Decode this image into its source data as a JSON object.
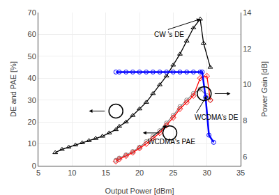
{
  "chart_data": {
    "type": "line",
    "xlabel": "Output Power [dBm]",
    "ylabel": "DE and PAE [%]",
    "y2label": "Power Gain [dB]",
    "xlim": [
      5,
      35
    ],
    "ylim": [
      0,
      70
    ],
    "y2lim": [
      5.5,
      14
    ],
    "xticks": [
      5,
      10,
      15,
      20,
      25,
      30,
      35
    ],
    "yticks": [
      0,
      10,
      20,
      30,
      40,
      50,
      60,
      70
    ],
    "y2ticks": [
      6,
      8,
      10,
      12,
      14
    ],
    "grid": true,
    "series": [
      {
        "x": [
          7.5,
          8.5,
          9.5,
          10.5,
          11.5,
          12.5,
          13.5,
          14.5,
          15.5,
          16.5,
          17,
          18,
          19,
          20,
          21,
          22,
          23,
          24,
          25,
          26,
          27,
          28,
          29,
          29.5,
          30.5
        ],
        "values": [
          6,
          7.5,
          8.5,
          9.5,
          10.5,
          11.5,
          12.5,
          13.5,
          15,
          16.5,
          18,
          20,
          23,
          26,
          29,
          33,
          37,
          41,
          46,
          51,
          57,
          63,
          67,
          56,
          45
        ],
        "color": "black",
        "marker": "triangle-up"
      },
      {
        "x": [
          16.5,
          17,
          18,
          19,
          20,
          21,
          22,
          23,
          24,
          25,
          26,
          27,
          28,
          29,
          29.3,
          29.8,
          30.3,
          31
        ],
        "values": [
          10.7,
          10.7,
          10.7,
          10.7,
          10.7,
          10.7,
          10.7,
          10.7,
          10.7,
          10.7,
          10.7,
          10.7,
          10.7,
          10.7,
          10.7,
          9.3,
          7.2,
          6.8
        ],
        "color": "blue",
        "marker": "circle",
        "axis": "y2"
      },
      {
        "x": [
          16.5,
          17,
          18,
          19,
          20,
          21,
          22,
          23,
          24,
          25,
          26,
          27,
          28,
          29,
          30,
          30.5
        ],
        "values": [
          2.5,
          3.5,
          5,
          6.5,
          8.5,
          11,
          13.5,
          16,
          19.5,
          23,
          27,
          30,
          33,
          35,
          32,
          30
        ],
        "color": "#888888",
        "marker": "circle"
      },
      {
        "x": [
          16.5,
          17,
          18,
          19,
          20,
          21,
          22,
          23,
          24,
          25,
          26,
          27,
          28,
          29,
          30,
          30.5
        ],
        "values": [
          2,
          3,
          4.5,
          6,
          8,
          10,
          12.5,
          15,
          18.5,
          22,
          26,
          29,
          32,
          40,
          41,
          30
        ],
        "color": "red",
        "marker": "diamond"
      }
    ],
    "annotations": [
      {
        "text": "CW 's DE",
        "x": 29.0,
        "y": 67,
        "ax": 22,
        "ay": 60
      },
      {
        "text": "WCDMA's DE",
        "x": 30.0,
        "y": 32,
        "ax": 28,
        "ay": 22
      },
      {
        "text": "WCDMA's PAE",
        "x": 24,
        "y": 18.5,
        "ax": 21,
        "ay": 11
      }
    ],
    "circles": [
      {
        "x": 16.5,
        "y": 25
      },
      {
        "x": 24.5,
        "y": 15
      },
      {
        "x": 29.6,
        "y": 9.5,
        "axis": "y2"
      }
    ],
    "arrows": [
      {
        "x_start": 15.0,
        "x_end": 12.5,
        "y": 25
      },
      {
        "x_start": 23.1,
        "x_end": 20.5,
        "y": 15
      },
      {
        "x_start": 31.0,
        "x_end": 33.5,
        "y": 9.5,
        "axis": "y2"
      }
    ]
  }
}
